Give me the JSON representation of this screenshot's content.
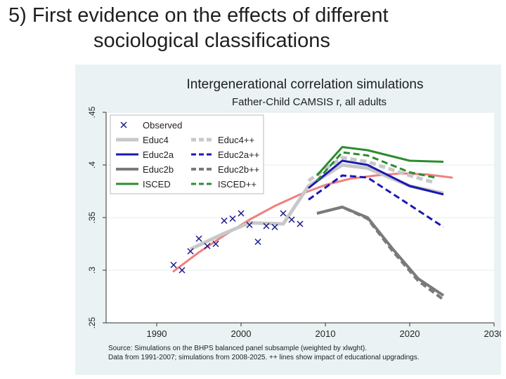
{
  "slide": {
    "title_line1": "5) First evidence on the effects of different",
    "title_line2": "sociological classifications"
  },
  "chart_data": {
    "type": "line",
    "title": "Intergenerational correlation simulations",
    "subtitle": "Father-Child CAMSIS r, all adults",
    "xlabel": "",
    "ylabel": "",
    "xlim": [
      1984,
      2030
    ],
    "ylim": [
      0.25,
      0.45
    ],
    "grid": true,
    "legend_position": "top-left",
    "x_ticks": [
      {
        "value": 1990,
        "label": "1990"
      },
      {
        "value": 2000,
        "label": "2000"
      },
      {
        "value": 2010,
        "label": "2010"
      },
      {
        "value": 2020,
        "label": "2020"
      },
      {
        "value": 2030,
        "label": "2030"
      }
    ],
    "y_ticks": [
      {
        "value": 0.25,
        "label": ".25"
      },
      {
        "value": 0.3,
        "label": ".3"
      },
      {
        "value": 0.35,
        "label": ".35"
      },
      {
        "value": 0.4,
        "label": ".4"
      },
      {
        "value": 0.45,
        "label": ".45"
      }
    ],
    "observed": {
      "name": "Observed",
      "color": "#1a1a8c",
      "points": [
        [
          1992,
          0.305
        ],
        [
          1993,
          0.3
        ],
        [
          1994,
          0.318
        ],
        [
          1995,
          0.33
        ],
        [
          1996,
          0.323
        ],
        [
          1997,
          0.325
        ],
        [
          1998,
          0.347
        ],
        [
          1999,
          0.349
        ],
        [
          2000,
          0.354
        ],
        [
          2001,
          0.343
        ],
        [
          2002,
          0.327
        ],
        [
          2003,
          0.342
        ],
        [
          2004,
          0.341
        ],
        [
          2005,
          0.354
        ],
        [
          2006,
          0.348
        ],
        [
          2007,
          0.344
        ]
      ]
    },
    "series": [
      {
        "name": "Educ4",
        "color": "#c8c8c8",
        "dash": false,
        "width": 5,
        "points": [
          [
            1994,
            0.32
          ],
          [
            1998,
            0.335
          ],
          [
            2001,
            0.345
          ],
          [
            2005,
            0.344
          ],
          [
            2008,
            0.38
          ],
          [
            2012,
            0.4
          ],
          [
            2015,
            0.397
          ],
          [
            2020,
            0.38
          ],
          [
            2024,
            0.373
          ]
        ]
      },
      {
        "name": "Educ4++",
        "color": "#c8c8c8",
        "dash": true,
        "width": 5,
        "points": [
          [
            2008,
            0.385
          ],
          [
            2012,
            0.407
          ],
          [
            2015,
            0.403
          ],
          [
            2020,
            0.39
          ],
          [
            2023,
            0.383
          ]
        ]
      },
      {
        "name": "Educ2a",
        "color": "#1919b3",
        "dash": false,
        "width": 3,
        "points": [
          [
            2008,
            0.378
          ],
          [
            2012,
            0.404
          ],
          [
            2015,
            0.4
          ],
          [
            2020,
            0.38
          ],
          [
            2024,
            0.372
          ]
        ]
      },
      {
        "name": "Educ2a++",
        "color": "#1919b3",
        "dash": true,
        "width": 3,
        "points": [
          [
            2008,
            0.367
          ],
          [
            2012,
            0.39
          ],
          [
            2015,
            0.388
          ],
          [
            2020,
            0.362
          ],
          [
            2024,
            0.341
          ]
        ]
      },
      {
        "name": "Educ2b",
        "color": "#7a7a7a",
        "dash": false,
        "width": 4,
        "points": [
          [
            2009,
            0.354
          ],
          [
            2012,
            0.36
          ],
          [
            2015,
            0.35
          ],
          [
            2018,
            0.32
          ],
          [
            2021,
            0.292
          ],
          [
            2024,
            0.276
          ]
        ]
      },
      {
        "name": "Educ2b++",
        "color": "#7a7a7a",
        "dash": true,
        "width": 4,
        "points": [
          [
            2009,
            0.354
          ],
          [
            2012,
            0.36
          ],
          [
            2015,
            0.349
          ],
          [
            2018,
            0.318
          ],
          [
            2021,
            0.29
          ],
          [
            2024,
            0.272
          ]
        ]
      },
      {
        "name": "ISCED",
        "color": "#2e8b2e",
        "dash": false,
        "width": 3,
        "points": [
          [
            2009,
            0.39
          ],
          [
            2012,
            0.417
          ],
          [
            2015,
            0.414
          ],
          [
            2020,
            0.404
          ],
          [
            2024,
            0.403
          ]
        ]
      },
      {
        "name": "ISCED++",
        "color": "#2e8b2e",
        "dash": true,
        "width": 3,
        "points": [
          [
            2009,
            0.385
          ],
          [
            2012,
            0.412
          ],
          [
            2015,
            0.409
          ],
          [
            2020,
            0.393
          ],
          [
            2023,
            0.388
          ]
        ]
      }
    ],
    "trend": {
      "name": "Fitted trend",
      "color": "#f08080",
      "points": [
        [
          1992,
          0.299
        ],
        [
          1995,
          0.317
        ],
        [
          1998,
          0.333
        ],
        [
          2001,
          0.348
        ],
        [
          2004,
          0.361
        ],
        [
          2007,
          0.372
        ],
        [
          2010,
          0.381
        ],
        [
          2013,
          0.387
        ],
        [
          2016,
          0.39
        ],
        [
          2019,
          0.392
        ],
        [
          2022,
          0.391
        ],
        [
          2025,
          0.388
        ]
      ]
    },
    "legend": [
      {
        "label": "Observed",
        "kind": "marker",
        "color": "#1a1a8c"
      },
      {
        "label": "Educ4++",
        "kind": "line",
        "color": "#c8c8c8",
        "dash": true,
        "width": 5
      },
      {
        "label": "Educ4",
        "kind": "line",
        "color": "#c8c8c8",
        "dash": false,
        "width": 5
      },
      {
        "label": "Educ2a++",
        "kind": "line",
        "color": "#1919b3",
        "dash": true,
        "width": 3
      },
      {
        "label": "Educ2a",
        "kind": "line",
        "color": "#1919b3",
        "dash": false,
        "width": 3
      },
      {
        "label": "Educ2b++",
        "kind": "line",
        "color": "#7a7a7a",
        "dash": true,
        "width": 4
      },
      {
        "label": "Educ2b",
        "kind": "line",
        "color": "#7a7a7a",
        "dash": false,
        "width": 4
      },
      {
        "label": "ISCED++",
        "kind": "line",
        "color": "#2e8b2e",
        "dash": true,
        "width": 3
      },
      {
        "label": "ISCED",
        "kind": "line",
        "color": "#2e8b2e",
        "dash": false,
        "width": 3
      }
    ],
    "note_line1": "Source: Simulations on the BHPS balanced panel subsample (weighted by xlwght).",
    "note_line2": "Data from 1991-2007; simulations from 2008-2025. ++ lines show impact of educational upgradings."
  }
}
